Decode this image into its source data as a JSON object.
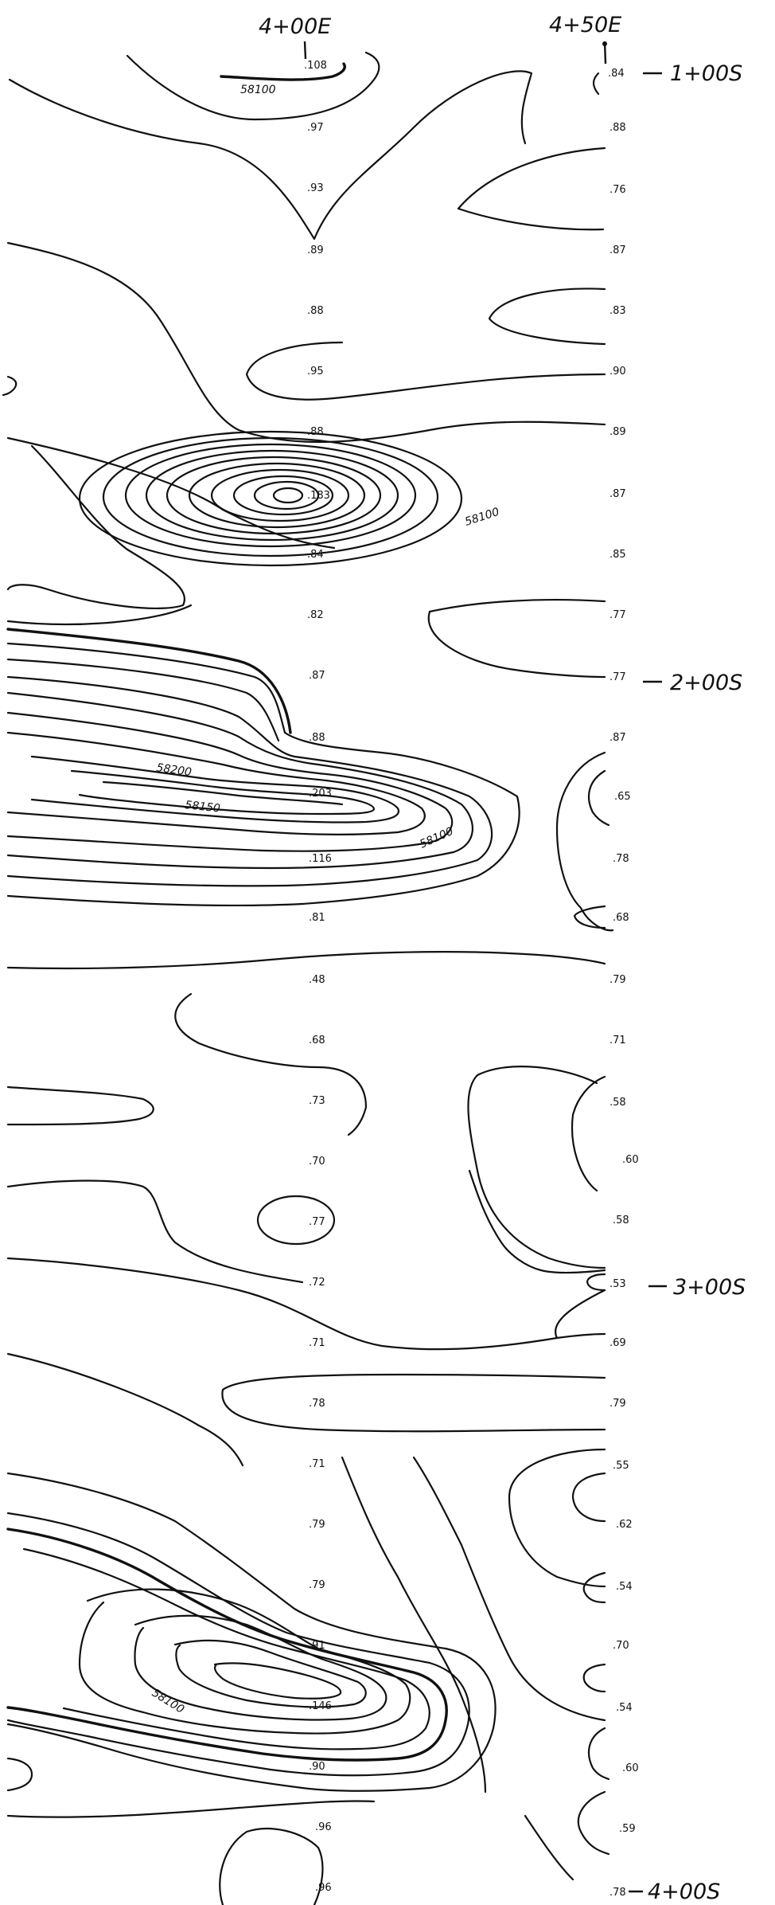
{
  "map": {
    "grid_lines": [
      {
        "label": "4+00E",
        "kind": "easting"
      },
      {
        "label": "4+50E",
        "kind": "easting"
      }
    ],
    "stations": [
      "1+00S",
      "2+00S",
      "3+00S",
      "4+00S"
    ],
    "contour_labels": [
      "58100",
      "58100",
      "58200",
      "58150",
      "58100",
      "58100"
    ],
    "line_4_00E_values": [
      ".108",
      ".97",
      ".93",
      ".89",
      ".88",
      ".95",
      ".88",
      ".183",
      ".84",
      ".82",
      ".87",
      ".88",
      ".203",
      ".116",
      ".81",
      ".48",
      ".68",
      ".73",
      ".70",
      ".77",
      ".72",
      ".71",
      ".78",
      ".71",
      ".79",
      ".79",
      ".91",
      ".146",
      ".90",
      ".96",
      ".96"
    ],
    "line_4_50E_values": [
      ".84",
      ".88",
      ".76",
      ".87",
      ".83",
      ".90",
      ".89",
      ".87",
      ".85",
      ".77",
      ".77",
      ".87",
      ".65",
      ".78",
      ".68",
      ".79",
      ".71",
      ".58",
      ".60",
      ".58",
      ".53",
      ".69",
      ".79",
      ".55",
      ".62",
      ".54",
      ".70",
      ".54",
      ".60",
      ".59",
      ".78"
    ]
  }
}
